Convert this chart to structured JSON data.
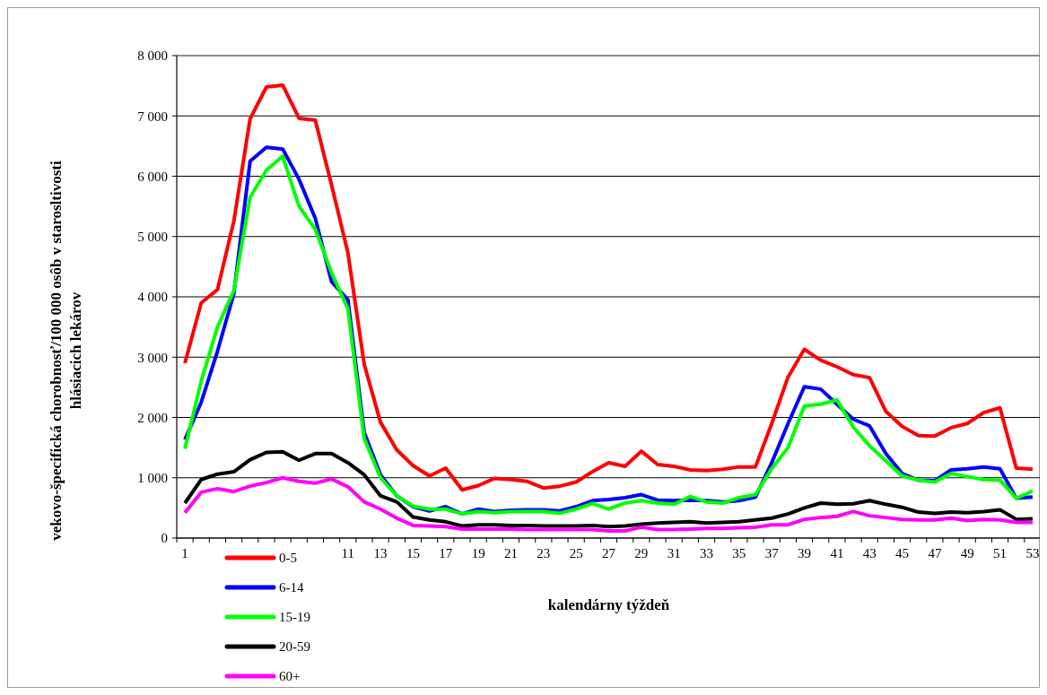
{
  "chart_data": {
    "type": "line",
    "xlabel": "kalendárny týždeň",
    "ylabel": "vekovo-špecifická chorobnosť/100 000 osôb v starosltivosti\nhlásiacich lekárov",
    "categories": [
      "1",
      null,
      null,
      null,
      null,
      null,
      null,
      null,
      null,
      null,
      "11",
      null,
      "13",
      null,
      "15",
      null,
      "17",
      null,
      "19",
      null,
      "21",
      null,
      "23",
      null,
      "25",
      null,
      "27",
      null,
      "29",
      null,
      "31",
      null,
      "33",
      null,
      "35",
      null,
      "37",
      null,
      "39",
      null,
      "41",
      null,
      "43",
      null,
      "45",
      null,
      "47",
      null,
      "49",
      null,
      "51",
      null,
      "53"
    ],
    "ylim": [
      0,
      8000
    ],
    "yticks": [
      0,
      {
        "value": 1000,
        "label": "1 000"
      },
      {
        "value": 2000,
        "label": "2 000"
      },
      {
        "value": 3000,
        "label": "3 000"
      },
      {
        "value": 4000,
        "label": "4 000"
      },
      {
        "value": 5000,
        "label": "5 000"
      },
      {
        "value": 6000,
        "label": "6 000"
      },
      {
        "value": 7000,
        "label": "7 000"
      },
      {
        "value": 8000,
        "label": "8 000"
      }
    ],
    "grid": "y",
    "legend": "bottom left",
    "marker": "none",
    "line_style": "solid",
    "series": [
      {
        "name": "0-5",
        "color": "#ff0000",
        "values": [
          2900,
          3900,
          4120,
          5250,
          6950,
          7480,
          7510,
          6960,
          6930,
          5850,
          4730,
          2880,
          1920,
          1460,
          1200,
          1030,
          1160,
          800,
          870,
          990,
          970,
          940,
          830,
          860,
          930,
          1100,
          1250,
          1190,
          1440,
          1220,
          1190,
          1130,
          1120,
          1140,
          1180,
          1180,
          1900,
          2670,
          3130,
          2950,
          2840,
          2710,
          2660,
          2100,
          1850,
          1700,
          1690,
          1830,
          1900,
          2080,
          2160,
          1160,
          1140
        ]
      },
      {
        "name": "6-14",
        "color": "#0000ff",
        "values": [
          1630,
          2250,
          3100,
          4050,
          6250,
          6480,
          6450,
          5950,
          5300,
          4250,
          3950,
          1750,
          1050,
          700,
          520,
          450,
          520,
          400,
          480,
          440,
          460,
          470,
          470,
          450,
          520,
          620,
          640,
          670,
          720,
          630,
          620,
          630,
          620,
          600,
          620,
          680,
          1250,
          1900,
          2510,
          2470,
          2220,
          1970,
          1860,
          1400,
          1070,
          960,
          950,
          1130,
          1150,
          1180,
          1150,
          660,
          680
        ]
      },
      {
        "name": "15-19",
        "color": "#00ff00",
        "values": [
          1480,
          2600,
          3500,
          4100,
          5650,
          6100,
          6330,
          5500,
          5120,
          4400,
          3800,
          1650,
          1000,
          700,
          530,
          480,
          480,
          400,
          440,
          420,
          440,
          440,
          440,
          410,
          480,
          570,
          480,
          580,
          620,
          580,
          560,
          690,
          600,
          580,
          670,
          720,
          1150,
          1500,
          2190,
          2220,
          2290,
          1840,
          1530,
          1280,
          1030,
          960,
          930,
          1070,
          1020,
          970,
          960,
          660,
          780
        ]
      },
      {
        "name": "20-59",
        "color": "#000000",
        "values": [
          580,
          970,
          1060,
          1100,
          1300,
          1420,
          1430,
          1290,
          1400,
          1400,
          1250,
          1050,
          700,
          600,
          350,
          300,
          270,
          200,
          220,
          220,
          210,
          210,
          200,
          200,
          200,
          210,
          190,
          200,
          230,
          250,
          260,
          270,
          250,
          260,
          270,
          300,
          330,
          400,
          500,
          580,
          560,
          570,
          620,
          560,
          510,
          430,
          410,
          430,
          420,
          440,
          470,
          310,
          320
        ]
      },
      {
        "name": "60+",
        "color": "#ff00ff",
        "values": [
          420,
          760,
          820,
          770,
          860,
          920,
          1000,
          940,
          910,
          980,
          850,
          600,
          480,
          330,
          210,
          200,
          190,
          150,
          150,
          150,
          150,
          140,
          140,
          140,
          140,
          140,
          120,
          120,
          180,
          140,
          140,
          150,
          160,
          160,
          170,
          180,
          220,
          220,
          310,
          340,
          360,
          440,
          370,
          340,
          310,
          300,
          300,
          330,
          290,
          310,
          300,
          260,
          260
        ]
      }
    ]
  }
}
